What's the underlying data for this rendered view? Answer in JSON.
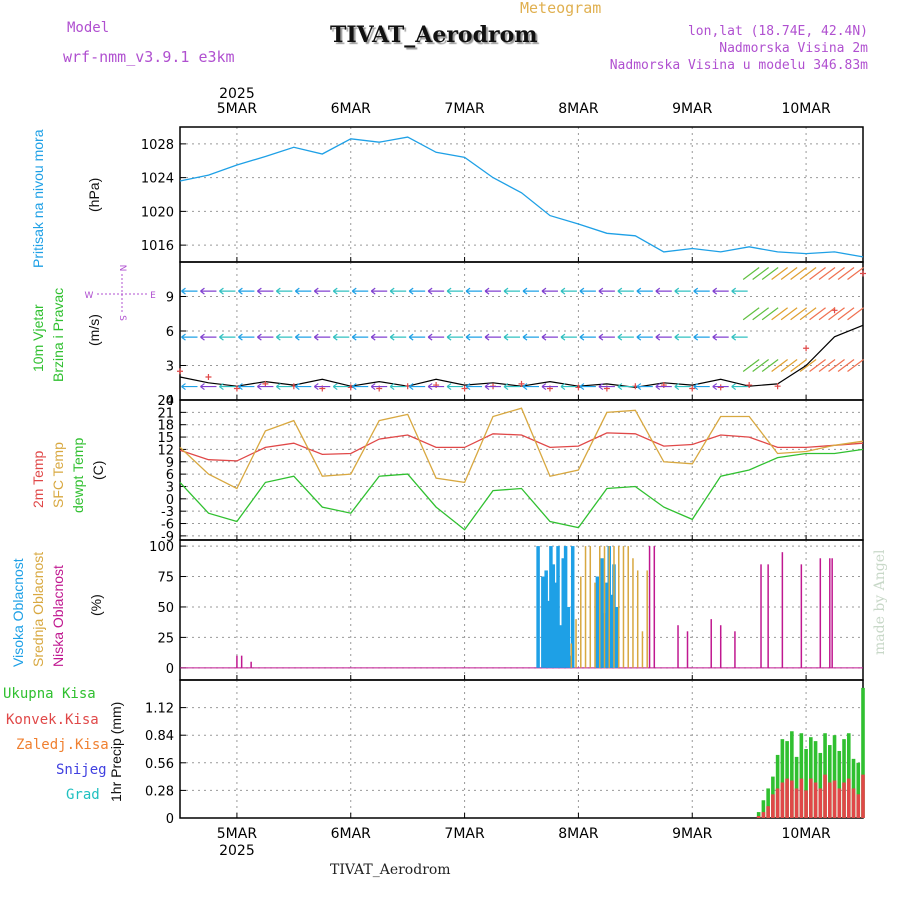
{
  "header": {
    "model_label": "Model",
    "model_name": "wrf-nmm_v3.9.1 e3km",
    "meteogram_label": "Meteogram",
    "title": "TIVAT_Aerodrom",
    "lonlat": "lon,lat (18.74E, 42.4N)",
    "elevation": "Nadmorska Visina 2m",
    "model_elevation": "Nadmorska Visina u modelu 346.83m",
    "footer_title": "TIVAT_Aerodrom",
    "credit": "made by Angel"
  },
  "time_axis": {
    "year": "2025",
    "days": [
      "5MAR",
      "6MAR",
      "7MAR",
      "8MAR",
      "9MAR",
      "10MAR"
    ]
  },
  "colors": {
    "pressure": "#1ea0e6",
    "temp2m": "#e04848",
    "sfc": "#d8a840",
    "dewpt": "#30c030",
    "high_cloud": "#1ea0e6",
    "mid_cloud": "#d8a840",
    "low_cloud": "#c01890",
    "total": "#30c030",
    "conv": "#e04848",
    "frz": "#f08030",
    "snow": "#4040e0",
    "grad": "#20c0c0"
  },
  "chart_data": [
    {
      "type": "line",
      "id": "pressure",
      "ylabel": "(hPa)",
      "side_label": "Pritisak na nivou mora",
      "ylim": [
        1014,
        1030
      ],
      "yticks": [
        "1028",
        "1024",
        "1020",
        "1016"
      ],
      "ytick_values": [
        1028,
        1024,
        1020,
        1016
      ],
      "x_hours": [
        0,
        6,
        12,
        18,
        24,
        30,
        36,
        42,
        48,
        54,
        60,
        66,
        72,
        78,
        84,
        90,
        96,
        102,
        108,
        114,
        120,
        126,
        132,
        138,
        144
      ],
      "series": [
        {
          "name": "Pritisak",
          "values": [
            1023.6,
            1024.3,
            1025.5,
            1026.5,
            1027.6,
            1026.8,
            1028.6,
            1028.2,
            1028.8,
            1027.0,
            1026.4,
            1024.0,
            1022.2,
            1019.5,
            1018.5,
            1017.4,
            1017.1,
            1015.2,
            1015.6,
            1015.2,
            1015.8,
            1015.2,
            1015.0,
            1015.2,
            1014.6
          ]
        }
      ]
    },
    {
      "type": "line",
      "id": "wind",
      "ylabel": "(m/s)",
      "side_label_1": "10m Vjetar",
      "side_label_2": "Brzina i Pravac",
      "compass": "N S W E",
      "ylim": [
        0,
        12
      ],
      "yticks": [
        "9",
        "6",
        "3",
        "0"
      ],
      "ytick_values": [
        9,
        6,
        3,
        0
      ],
      "x_hours": [
        0,
        6,
        12,
        18,
        24,
        30,
        36,
        42,
        48,
        54,
        60,
        66,
        72,
        78,
        84,
        90,
        96,
        102,
        108,
        114,
        120,
        126,
        132,
        138,
        144
      ],
      "series": [
        {
          "name": "brzina",
          "values": [
            2.0,
            1.5,
            1.2,
            1.6,
            1.3,
            1.8,
            1.2,
            1.6,
            1.2,
            1.8,
            1.3,
            1.5,
            1.2,
            1.6,
            1.2,
            1.4,
            1.1,
            1.5,
            1.3,
            1.8,
            1.2,
            1.4,
            3.0,
            5.5,
            6.5
          ]
        },
        {
          "name": "udari",
          "values": [
            2.5,
            2.0,
            1.0,
            1.4,
            1.2,
            1.0,
            1.1,
            1.0,
            1.2,
            1.3,
            1.0,
            1.2,
            1.4,
            1.0,
            1.1,
            1.0,
            1.2,
            1.3,
            1.0,
            1.1,
            1.3,
            1.2,
            4.5,
            7.8,
            11.0
          ]
        }
      ]
    },
    {
      "type": "line",
      "id": "temp",
      "ylabel": "(C)",
      "side_label_1": "2m Temp",
      "side_label_2": "SFC Temp",
      "side_label_3": "dewpt Temp",
      "ylim": [
        -10,
        24
      ],
      "yticks": [
        "24",
        "21",
        "18",
        "15",
        "12",
        "9",
        "6",
        "3",
        "0",
        "-3",
        "-6",
        "-9"
      ],
      "ytick_values": [
        24,
        21,
        18,
        15,
        12,
        9,
        6,
        3,
        0,
        -3,
        -6,
        -9
      ],
      "x_hours": [
        0,
        6,
        12,
        18,
        24,
        30,
        36,
        42,
        48,
        54,
        60,
        66,
        72,
        78,
        84,
        90,
        96,
        102,
        108,
        114,
        120,
        126,
        132,
        138,
        144
      ],
      "series": [
        {
          "name": "2m Temp",
          "values": [
            11.8,
            9.5,
            9.2,
            12.5,
            13.5,
            10.8,
            11.0,
            14.5,
            15.5,
            12.5,
            12.5,
            15.8,
            15.5,
            12.5,
            12.8,
            16.0,
            15.8,
            12.8,
            13.2,
            15.5,
            15.0,
            12.5,
            12.5,
            13.0,
            13.5
          ]
        },
        {
          "name": "SFC Temp",
          "values": [
            12.5,
            6.0,
            2.5,
            16.5,
            19.0,
            5.5,
            6.0,
            19.0,
            20.5,
            5.0,
            4.0,
            20.0,
            22.0,
            5.5,
            7.0,
            21.0,
            21.5,
            9.0,
            8.5,
            20.0,
            20.0,
            11.0,
            11.5,
            13.0,
            14.0
          ]
        },
        {
          "name": "dewpt Temp",
          "values": [
            4.0,
            -3.5,
            -5.5,
            4.0,
            5.5,
            -2.0,
            -3.5,
            5.5,
            6.0,
            -2.0,
            -7.5,
            2.0,
            2.5,
            -5.5,
            -7.0,
            2.5,
            3.0,
            -2.0,
            -5.0,
            5.5,
            7.0,
            10.0,
            11.0,
            11.0,
            12.0
          ]
        }
      ]
    },
    {
      "type": "bar",
      "id": "clouds",
      "ylabel": "(%)",
      "side_label_1": "Visoka Oblacnost",
      "side_label_2": "Srednja Oblacnost",
      "side_label_3": "Niska Oblacnost",
      "ylim": [
        -10,
        105
      ],
      "yticks": [
        "100",
        "75",
        "50",
        "25",
        "0"
      ],
      "ytick_values": [
        100,
        75,
        50,
        25,
        0
      ],
      "series": [
        {
          "name": "Visoka Oblacnost",
          "color_key": "high_cloud",
          "hours": [
            75.5,
            76.5,
            77.2,
            77.7,
            78.2,
            78.7,
            79.2,
            79.7,
            80.2,
            80.8,
            81.3,
            81.9,
            82.3,
            82.8,
            88.0,
            88.5,
            89.0,
            89.5,
            90.0,
            90.5,
            91.0,
            91.5,
            92.0
          ],
          "values": [
            100,
            75,
            80,
            55,
            100,
            85,
            70,
            100,
            35,
            90,
            100,
            50,
            10,
            100,
            75,
            55,
            90,
            45,
            70,
            100,
            60,
            85,
            50
          ]
        },
        {
          "name": "Srednja Oblacnost",
          "color_key": "mid_cloud",
          "hours": [
            82.5,
            83.5,
            84.5,
            85.5,
            86.5,
            87.5,
            88.5,
            89.5,
            90.5,
            91.5,
            92.5,
            93.5,
            94.5,
            95.5,
            96.5,
            97.5,
            98.5
          ],
          "values": [
            20,
            40,
            75,
            100,
            100,
            70,
            100,
            100,
            100,
            100,
            100,
            100,
            100,
            90,
            80,
            30,
            80
          ]
        },
        {
          "name": "Niska Oblacnost",
          "color_key": "low_cloud",
          "hours": [
            12.0,
            13.0,
            15.0,
            99.0,
            100.0,
            105.0,
            107.0,
            112.0,
            114.0,
            117.0,
            122.5,
            124.0,
            127.0,
            131.0,
            135.0,
            137.0,
            137.5
          ],
          "values": [
            10,
            10,
            5,
            100,
            100,
            35,
            30,
            40,
            35,
            30,
            85,
            85,
            95,
            85,
            90,
            90,
            90
          ]
        }
      ]
    },
    {
      "type": "bar",
      "id": "precip",
      "ylabel": "1hr Precip (mm)",
      "ylim": [
        0,
        1.4
      ],
      "yticks": [
        "1.12",
        "0.84",
        "0.56",
        "0.28",
        "0"
      ],
      "ytick_values": [
        1.12,
        0.84,
        0.56,
        0.28,
        0
      ],
      "legend": [
        "Ukupna Kisa",
        "Konvek.Kisa",
        "Zaledj.Kisa",
        "Snijeg",
        "Grad"
      ],
      "hours": [
        122,
        123,
        124,
        125,
        126,
        127,
        128,
        129,
        130,
        131,
        132,
        133,
        134,
        135,
        136,
        137,
        138,
        139,
        140,
        141,
        142,
        143,
        144
      ],
      "series": [
        {
          "name": "Ukupna Kisa",
          "color_key": "total",
          "values": [
            0.06,
            0.18,
            0.3,
            0.42,
            0.64,
            0.8,
            0.78,
            0.88,
            0.62,
            0.86,
            0.7,
            0.82,
            0.78,
            0.66,
            0.86,
            0.74,
            0.84,
            0.68,
            0.8,
            0.86,
            0.6,
            0.56,
            1.32
          ]
        },
        {
          "name": "Konvek.Kisa",
          "color_key": "conv",
          "values": [
            0.02,
            0.06,
            0.12,
            0.24,
            0.3,
            0.36,
            0.4,
            0.38,
            0.3,
            0.4,
            0.28,
            0.4,
            0.36,
            0.3,
            0.44,
            0.36,
            0.38,
            0.3,
            0.36,
            0.4,
            0.3,
            0.24,
            0.44
          ]
        }
      ]
    }
  ]
}
